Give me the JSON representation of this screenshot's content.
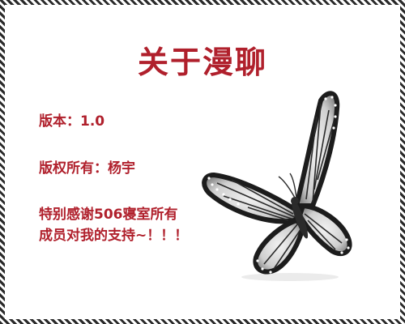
{
  "window": {
    "title": "关于漫聊"
  },
  "about": {
    "version": "版本：1.0",
    "copyright": "版权所有：杨宇",
    "thanks_line1": "特别感谢506寝室所有",
    "thanks_line2": "成员对我的支持~！！！"
  },
  "image": {
    "subject": "butterfly-icon"
  }
}
